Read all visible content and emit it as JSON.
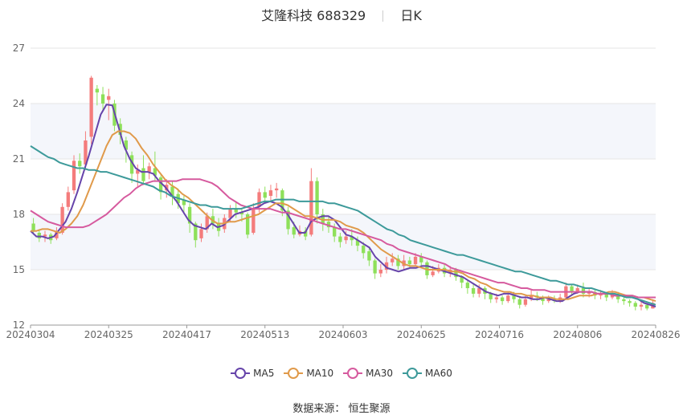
{
  "header": {
    "title": "艾隆科技 688329",
    "period": "日K"
  },
  "footer": {
    "source": "数据来源： 恒生聚源"
  },
  "colors": {
    "up": "#F47C7C",
    "down": "#8EE05A",
    "ma5": "#6644AA",
    "ma10": "#E09A4A",
    "ma30": "#D65A9E",
    "ma60": "#3D9A9A",
    "band": "#F4F6FB",
    "grid": "#E6E6E6"
  },
  "chart_data": {
    "type": "candlestick",
    "y_ticks": [
      12,
      15,
      18,
      21,
      24,
      27
    ],
    "ylim": [
      12,
      27
    ],
    "x_ticks": [
      "20240304",
      "20240325",
      "20240417",
      "20240513",
      "20240603",
      "20240625",
      "20240716",
      "20240806",
      "20240826"
    ],
    "grid": true,
    "legend_position": "bottom",
    "series": [
      {
        "name": "MA5",
        "color": "#6644AA",
        "values": [
          17.1,
          16.8,
          16.8,
          16.7,
          16.8,
          17.2,
          17.6,
          18.3,
          19.2,
          20.2,
          21.2,
          22.3,
          23.4,
          23.95,
          23.9,
          22.8,
          21.7,
          21.0,
          20.5,
          20.3,
          20.3,
          20.2,
          19.8,
          19.5,
          19.1,
          18.7,
          18.2,
          17.7,
          17.4,
          17.3,
          17.2,
          17.5,
          17.3,
          17.4,
          17.7,
          18.0,
          18.1,
          18.2,
          18.3,
          18.4,
          18.6,
          18.7,
          18.6,
          18.4,
          18.0,
          17.5,
          17.0,
          17.0,
          17.6,
          17.8,
          17.9,
          17.9,
          17.7,
          17.3,
          16.9,
          16.8,
          16.6,
          16.4,
          16.2,
          15.7,
          15.4,
          15.1,
          15.0,
          14.9,
          15.0,
          15.1,
          15.1,
          15.2,
          15.2,
          15.1,
          15.0,
          14.9,
          14.8,
          14.7,
          14.6,
          14.4,
          14.2,
          14.0,
          13.8,
          13.7,
          13.6,
          13.7,
          13.7,
          13.6,
          13.5,
          13.5,
          13.4,
          13.4,
          13.5,
          13.4,
          13.3,
          13.3,
          13.5,
          13.7,
          13.8,
          13.8,
          13.8,
          13.7,
          13.7,
          13.7,
          13.6,
          13.6,
          13.6,
          13.5,
          13.4,
          13.2,
          13.1,
          13.0
        ]
      },
      {
        "name": "MA10",
        "color": "#E09A4A",
        "values": [
          17.1,
          17.1,
          17.2,
          17.2,
          17.1,
          17.0,
          17.2,
          17.5,
          17.9,
          18.5,
          19.3,
          20.1,
          20.9,
          21.7,
          22.3,
          22.5,
          22.5,
          22.4,
          22.1,
          21.6,
          21.2,
          20.7,
          20.3,
          19.9,
          19.6,
          19.4,
          19.1,
          18.9,
          18.6,
          18.3,
          18.0,
          17.7,
          17.5,
          17.5,
          17.6,
          17.6,
          17.7,
          17.8,
          17.9,
          18.0,
          18.2,
          18.4,
          18.6,
          18.6,
          18.5,
          18.3,
          18.1,
          17.9,
          17.9,
          17.8,
          17.7,
          17.7,
          17.7,
          17.6,
          17.4,
          17.3,
          17.2,
          17.0,
          16.7,
          16.4,
          16.1,
          15.9,
          15.7,
          15.5,
          15.3,
          15.2,
          15.2,
          15.1,
          15.0,
          15.0,
          15.0,
          15.0,
          14.9,
          14.9,
          14.8,
          14.6,
          14.5,
          14.3,
          14.2,
          14.0,
          13.9,
          13.8,
          13.8,
          13.7,
          13.7,
          13.6,
          13.6,
          13.5,
          13.5,
          13.5,
          13.4,
          13.4,
          13.4,
          13.5,
          13.6,
          13.6,
          13.6,
          13.7,
          13.7,
          13.8,
          13.8,
          13.7,
          13.6,
          13.6,
          13.5,
          13.5,
          13.4,
          13.3
        ]
      },
      {
        "name": "MA30",
        "color": "#D65A9E",
        "values": [
          18.2,
          18.0,
          17.8,
          17.6,
          17.5,
          17.4,
          17.3,
          17.3,
          17.3,
          17.3,
          17.4,
          17.6,
          17.8,
          18.0,
          18.3,
          18.6,
          18.9,
          19.1,
          19.4,
          19.6,
          19.7,
          19.8,
          19.8,
          19.8,
          19.8,
          19.8,
          19.9,
          19.9,
          19.9,
          19.9,
          19.8,
          19.7,
          19.5,
          19.2,
          18.9,
          18.7,
          18.5,
          18.4,
          18.3,
          18.3,
          18.3,
          18.3,
          18.2,
          18.1,
          18.1,
          18.0,
          17.9,
          17.8,
          17.7,
          17.6,
          17.5,
          17.4,
          17.3,
          17.2,
          17.2,
          17.1,
          17.0,
          16.9,
          16.8,
          16.7,
          16.6,
          16.4,
          16.3,
          16.1,
          16.0,
          15.9,
          15.8,
          15.7,
          15.6,
          15.5,
          15.4,
          15.3,
          15.1,
          15.0,
          14.9,
          14.8,
          14.7,
          14.6,
          14.5,
          14.4,
          14.3,
          14.3,
          14.2,
          14.1,
          14.0,
          14.0,
          13.9,
          13.9,
          13.9,
          13.8,
          13.8,
          13.8,
          13.8,
          13.8,
          13.8,
          13.8,
          13.8,
          13.7,
          13.7,
          13.7,
          13.6,
          13.6,
          13.6,
          13.6,
          13.5,
          13.5,
          13.5,
          13.5
        ]
      },
      {
        "name": "MA60",
        "color": "#3D9A9A",
        "values": [
          21.7,
          21.5,
          21.3,
          21.1,
          21.0,
          20.8,
          20.7,
          20.6,
          20.5,
          20.5,
          20.4,
          20.4,
          20.3,
          20.3,
          20.2,
          20.1,
          20.0,
          19.9,
          19.8,
          19.7,
          19.6,
          19.5,
          19.3,
          19.2,
          19.0,
          18.9,
          18.8,
          18.7,
          18.6,
          18.5,
          18.5,
          18.4,
          18.4,
          18.3,
          18.3,
          18.3,
          18.3,
          18.4,
          18.5,
          18.6,
          18.7,
          18.7,
          18.8,
          18.8,
          18.8,
          18.8,
          18.7,
          18.7,
          18.7,
          18.7,
          18.7,
          18.6,
          18.6,
          18.5,
          18.4,
          18.3,
          18.2,
          18.0,
          17.8,
          17.6,
          17.4,
          17.2,
          17.1,
          16.9,
          16.8,
          16.6,
          16.5,
          16.4,
          16.3,
          16.2,
          16.1,
          16.0,
          15.9,
          15.8,
          15.8,
          15.7,
          15.6,
          15.5,
          15.4,
          15.3,
          15.2,
          15.1,
          15.0,
          14.9,
          14.9,
          14.8,
          14.7,
          14.6,
          14.5,
          14.4,
          14.4,
          14.3,
          14.2,
          14.2,
          14.1,
          14.0,
          14.0,
          13.9,
          13.8,
          13.7,
          13.7,
          13.6,
          13.5,
          13.5,
          13.4,
          13.3,
          13.2,
          13.1
        ]
      }
    ],
    "candles": [
      [
        17.5,
        17.1,
        17.8,
        16.9
      ],
      [
        17.0,
        16.7,
        17.2,
        16.5
      ],
      [
        16.8,
        16.9,
        17.1,
        16.5
      ],
      [
        16.9,
        16.6,
        17.0,
        16.4
      ],
      [
        16.7,
        17.1,
        17.3,
        16.6
      ],
      [
        17.0,
        18.4,
        18.6,
        16.9
      ],
      [
        18.4,
        19.2,
        19.5,
        18.2
      ],
      [
        19.3,
        20.9,
        21.2,
        19.1
      ],
      [
        20.9,
        20.6,
        21.3,
        20.2
      ],
      [
        20.7,
        22.0,
        22.5,
        20.4
      ],
      [
        22.2,
        25.4,
        25.5,
        21.8
      ],
      [
        24.8,
        24.6,
        25.0,
        23.9
      ],
      [
        24.5,
        24.0,
        24.9,
        23.6
      ],
      [
        24.2,
        24.4,
        24.8,
        23.1
      ],
      [
        24.0,
        22.8,
        24.2,
        22.5
      ],
      [
        22.9,
        22.3,
        23.2,
        21.8
      ],
      [
        22.0,
        21.5,
        22.2,
        20.8
      ],
      [
        21.2,
        20.2,
        21.4,
        19.7
      ],
      [
        20.2,
        20.4,
        20.7,
        19.5
      ],
      [
        20.5,
        19.8,
        21.2,
        19.6
      ],
      [
        20.3,
        20.6,
        20.8,
        19.9
      ],
      [
        20.5,
        20.1,
        21.4,
        19.8
      ],
      [
        20.0,
        19.2,
        20.1,
        18.8
      ],
      [
        19.3,
        19.6,
        19.9,
        18.9
      ],
      [
        19.5,
        19.0,
        19.8,
        18.5
      ],
      [
        19.1,
        18.6,
        19.4,
        18.3
      ],
      [
        18.8,
        18.5,
        19.0,
        18.1
      ],
      [
        18.4,
        17.5,
        18.6,
        17.0
      ],
      [
        17.5,
        16.6,
        17.6,
        16.2
      ],
      [
        16.7,
        17.2,
        17.5,
        16.5
      ],
      [
        17.2,
        17.9,
        18.1,
        17.0
      ],
      [
        17.9,
        17.5,
        18.3,
        17.2
      ],
      [
        17.5,
        17.1,
        17.8,
        16.8
      ],
      [
        17.2,
        17.8,
        18.0,
        17.0
      ],
      [
        17.8,
        18.3,
        18.5,
        17.6
      ],
      [
        18.3,
        18.1,
        18.7,
        17.8
      ],
      [
        18.1,
        18.0,
        18.3,
        17.6
      ],
      [
        18.0,
        16.9,
        18.1,
        16.7
      ],
      [
        17.0,
        18.3,
        18.6,
        16.9
      ],
      [
        18.4,
        19.2,
        19.4,
        18.1
      ],
      [
        19.2,
        18.9,
        19.5,
        18.6
      ],
      [
        19.0,
        19.3,
        19.6,
        18.7
      ],
      [
        19.3,
        19.4,
        19.7,
        18.9
      ],
      [
        19.3,
        18.2,
        19.4,
        17.9
      ],
      [
        18.2,
        17.2,
        18.4,
        16.9
      ],
      [
        17.3,
        16.9,
        17.6,
        16.7
      ],
      [
        16.9,
        17.1,
        17.4,
        16.8
      ],
      [
        17.1,
        16.8,
        17.3,
        16.6
      ],
      [
        16.9,
        19.8,
        20.5,
        16.8
      ],
      [
        19.8,
        18.0,
        20.0,
        17.5
      ],
      [
        18.0,
        17.5,
        18.3,
        17.1
      ],
      [
        17.6,
        17.3,
        17.9,
        17.0
      ],
      [
        17.3,
        16.8,
        17.5,
        16.5
      ],
      [
        16.8,
        16.5,
        17.0,
        16.2
      ],
      [
        16.6,
        16.8,
        17.1,
        16.4
      ],
      [
        16.8,
        16.6,
        17.2,
        16.3
      ],
      [
        16.6,
        16.3,
        16.8,
        16.0
      ],
      [
        16.3,
        15.9,
        16.5,
        15.6
      ],
      [
        16.0,
        15.5,
        16.2,
        15.2
      ],
      [
        15.5,
        14.8,
        15.6,
        14.5
      ],
      [
        14.8,
        15.0,
        15.3,
        14.6
      ],
      [
        15.0,
        15.4,
        15.7,
        14.8
      ],
      [
        15.4,
        15.6,
        15.9,
        15.2
      ],
      [
        15.6,
        15.2,
        15.8,
        15.0
      ],
      [
        15.2,
        15.5,
        15.8,
        15.0
      ],
      [
        15.5,
        15.3,
        15.7,
        15.1
      ],
      [
        15.3,
        15.7,
        15.9,
        15.2
      ],
      [
        15.7,
        15.4,
        15.9,
        15.2
      ],
      [
        15.4,
        14.7,
        15.5,
        14.5
      ],
      [
        14.7,
        14.9,
        15.2,
        14.6
      ],
      [
        14.9,
        15.1,
        15.3,
        14.8
      ],
      [
        15.1,
        14.8,
        15.3,
        14.6
      ],
      [
        14.8,
        15.0,
        15.2,
        14.6
      ],
      [
        15.0,
        14.6,
        15.1,
        14.4
      ],
      [
        14.6,
        14.3,
        14.7,
        14.0
      ],
      [
        14.3,
        14.0,
        14.4,
        13.7
      ],
      [
        14.0,
        13.7,
        14.2,
        13.5
      ],
      [
        13.7,
        14.0,
        14.2,
        13.5
      ],
      [
        14.0,
        13.7,
        14.1,
        13.4
      ],
      [
        13.7,
        13.4,
        13.8,
        13.2
      ],
      [
        13.4,
        13.5,
        13.7,
        13.2
      ],
      [
        13.5,
        13.3,
        13.6,
        13.1
      ],
      [
        13.3,
        13.6,
        13.8,
        13.2
      ],
      [
        13.6,
        13.4,
        13.8,
        13.2
      ],
      [
        13.4,
        13.1,
        13.5,
        12.9
      ],
      [
        13.1,
        13.4,
        13.6,
        13.0
      ],
      [
        13.4,
        13.6,
        13.9,
        13.3
      ],
      [
        13.6,
        13.5,
        13.8,
        13.3
      ],
      [
        13.5,
        13.3,
        13.6,
        13.1
      ],
      [
        13.3,
        13.4,
        13.6,
        13.2
      ],
      [
        13.4,
        13.3,
        13.6,
        13.2
      ],
      [
        13.3,
        13.5,
        13.7,
        13.2
      ],
      [
        13.5,
        14.1,
        14.3,
        13.4
      ],
      [
        14.1,
        13.8,
        14.2,
        13.6
      ],
      [
        13.8,
        14.0,
        14.2,
        13.7
      ],
      [
        14.0,
        13.7,
        14.3,
        13.5
      ],
      [
        13.7,
        13.8,
        14.0,
        13.5
      ],
      [
        13.8,
        13.6,
        13.9,
        13.4
      ],
      [
        13.6,
        13.7,
        13.9,
        13.4
      ],
      [
        13.7,
        13.5,
        13.8,
        13.3
      ],
      [
        13.5,
        13.7,
        13.9,
        13.4
      ],
      [
        13.7,
        13.4,
        13.8,
        13.2
      ],
      [
        13.4,
        13.3,
        13.5,
        13.1
      ],
      [
        13.3,
        13.2,
        13.4,
        13.0
      ],
      [
        13.2,
        13.0,
        13.3,
        12.8
      ],
      [
        13.0,
        13.1,
        13.3,
        12.8
      ],
      [
        13.1,
        12.9,
        13.2,
        12.8
      ],
      [
        12.9,
        13.2,
        13.4,
        12.9
      ]
    ]
  }
}
